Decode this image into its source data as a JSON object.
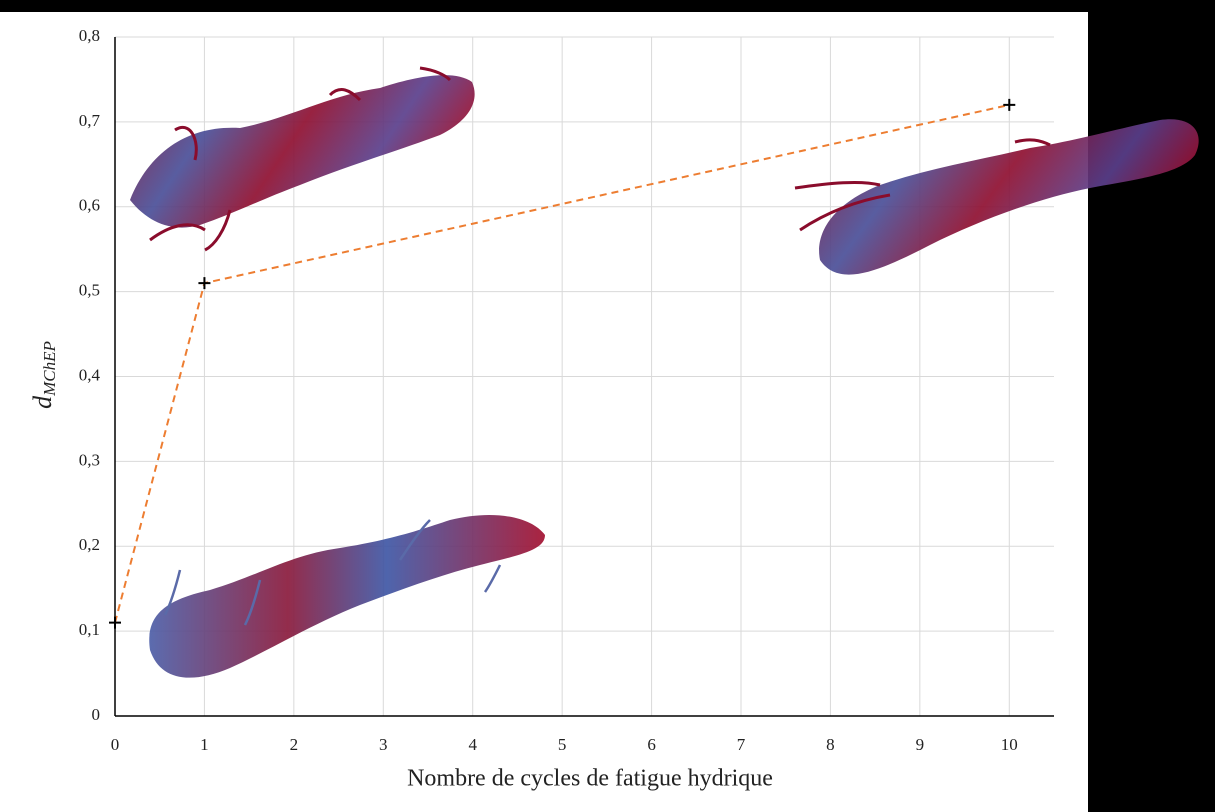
{
  "chart_data": {
    "type": "line",
    "x_label": "Nombre de cycles de fatigue hydrique",
    "y_label": {
      "main": "d",
      "sub": "MChEP"
    },
    "x": [
      0,
      1,
      10
    ],
    "series": [
      {
        "color": "#ed7d31",
        "marker_color": "#000000",
        "values": [
          0.11,
          0.51,
          0.72
        ]
      }
    ],
    "xlim": [
      0,
      10.5
    ],
    "xticks": [
      0,
      1,
      2,
      3,
      4,
      5,
      6,
      7,
      8,
      9,
      10
    ],
    "ylim": [
      0,
      0.8
    ],
    "yticks": [
      0,
      {
        "value": 0.1,
        "label": "0,1"
      },
      {
        "value": 0.2,
        "label": "0,2"
      },
      {
        "value": 0.3,
        "label": "0,3"
      },
      {
        "value": 0.4,
        "label": "0,4"
      },
      {
        "value": 0.5,
        "label": "0,5"
      },
      {
        "value": 0.6,
        "label": "0,6"
      },
      {
        "value": 0.7,
        "label": "0,7"
      },
      {
        "value": 0.8,
        "label": "0,8"
      }
    ],
    "grid": true,
    "dashed": true
  }
}
